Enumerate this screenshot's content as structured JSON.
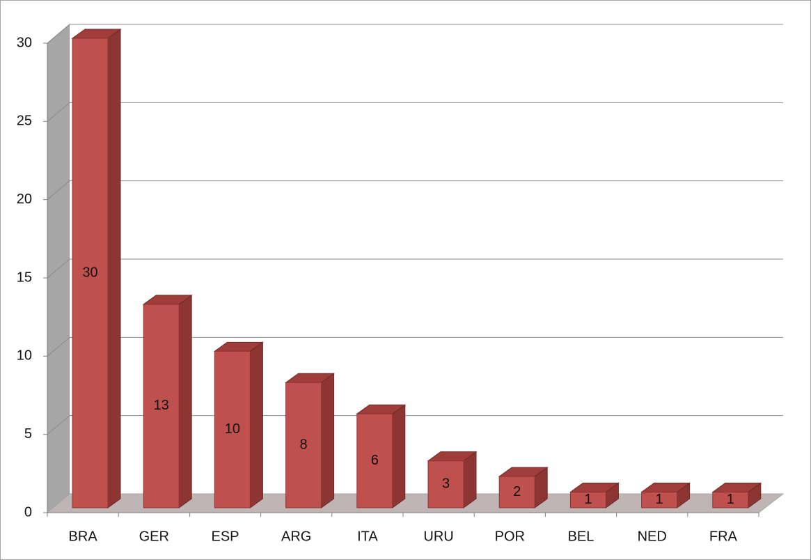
{
  "chart_data": {
    "type": "bar",
    "categories": [
      "BRA",
      "GER",
      "ESP",
      "ARG",
      "ITA",
      "URU",
      "POR",
      "BEL",
      "NED",
      "FRA"
    ],
    "values": [
      30,
      13,
      10,
      8,
      6,
      3,
      2,
      1,
      1,
      1
    ],
    "color": "#c0504d",
    "ylim": [
      0,
      30
    ],
    "yticks": [
      0,
      5,
      10,
      15,
      20,
      25,
      30
    ],
    "grid": true
  }
}
